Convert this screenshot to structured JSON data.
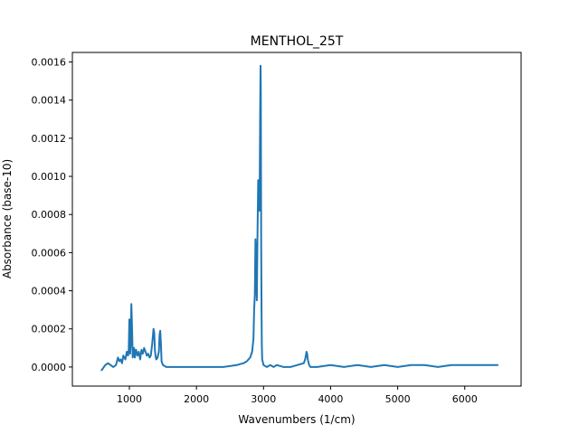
{
  "chart_data": {
    "type": "line",
    "title": "MENTHOL_25T",
    "xlabel": "Wavenumbers (1/cm)",
    "ylabel": "Absorbance (base-10)",
    "xlim": [
      150,
      6840
    ],
    "ylim": [
      -0.0001,
      0.00165
    ],
    "x_ticks": [
      1000,
      2000,
      3000,
      4000,
      5000,
      6000
    ],
    "y_ticks": [
      0.0,
      0.0002,
      0.0004,
      0.0006,
      0.0008,
      0.001,
      0.0012,
      0.0014,
      0.0016
    ],
    "x_tick_labels": [
      "1000",
      "2000",
      "3000",
      "4000",
      "5000",
      "6000"
    ],
    "y_tick_labels": [
      "0.0000",
      "0.0002",
      "0.0004",
      "0.0006",
      "0.0008",
      "0.0010",
      "0.0012",
      "0.0014",
      "0.0016"
    ],
    "grid": false,
    "series": [
      {
        "color": "#1f77b4",
        "x": [
          580,
          600,
          640,
          680,
          720,
          760,
          800,
          830,
          850,
          870,
          890,
          910,
          940,
          960,
          980,
          990,
          1000,
          1010,
          1020,
          1030,
          1040,
          1050,
          1060,
          1070,
          1080,
          1090,
          1100,
          1120,
          1140,
          1160,
          1180,
          1200,
          1220,
          1240,
          1260,
          1280,
          1300,
          1320,
          1340,
          1360,
          1370,
          1380,
          1390,
          1400,
          1420,
          1440,
          1450,
          1460,
          1470,
          1480,
          1500,
          1550,
          1600,
          1700,
          1800,
          2000,
          2200,
          2400,
          2600,
          2700,
          2750,
          2800,
          2830,
          2850,
          2860,
          2870,
          2880,
          2890,
          2900,
          2910,
          2920,
          2930,
          2940,
          2950,
          2955,
          2960,
          2965,
          2970,
          2975,
          2980,
          3000,
          3050,
          3100,
          3150,
          3200,
          3300,
          3400,
          3500,
          3600,
          3620,
          3640,
          3650,
          3660,
          3680,
          3700,
          3800,
          4000,
          4200,
          4400,
          4600,
          4800,
          5000,
          5200,
          5400,
          5600,
          5800,
          6000,
          6200,
          6400,
          6500
        ],
        "values": [
          -2e-05,
          -1e-05,
          1e-05,
          2e-05,
          1e-05,
          0.0,
          1e-05,
          5e-05,
          3e-05,
          4e-05,
          2e-05,
          6e-05,
          4e-05,
          8e-05,
          6e-05,
          9e-05,
          0.00025,
          7e-05,
          0.00012,
          0.00033,
          0.0002,
          5e-05,
          8e-05,
          0.0001,
          5e-05,
          7e-05,
          9e-05,
          6e-05,
          8e-05,
          4e-05,
          9e-05,
          7e-05,
          0.0001,
          8e-05,
          6e-05,
          7e-05,
          5e-05,
          6e-05,
          0.00012,
          0.0002,
          0.00018,
          9e-05,
          6e-05,
          4e-05,
          5e-05,
          8e-05,
          0.00017,
          0.00019,
          0.00012,
          3e-05,
          1e-05,
          0.0,
          0.0,
          0.0,
          0.0,
          0.0,
          0.0,
          0.0,
          1e-05,
          2e-05,
          3e-05,
          5e-05,
          8e-05,
          0.00015,
          0.0003,
          0.00038,
          0.00067,
          0.00052,
          0.00035,
          0.00068,
          0.00098,
          0.00092,
          0.00082,
          0.00135,
          0.00158,
          0.00145,
          0.00064,
          0.0003,
          0.00012,
          4e-05,
          1e-05,
          0.0,
          1e-05,
          0.0,
          1e-05,
          0.0,
          0.0,
          1e-05,
          2e-05,
          4e-05,
          8e-05,
          7e-05,
          4e-05,
          1e-05,
          0.0,
          0.0,
          1e-05,
          0.0,
          1e-05,
          0.0,
          1e-05,
          0.0,
          1e-05,
          1e-05,
          0.0,
          1e-05,
          1e-05,
          1e-05,
          1e-05,
          1e-05
        ]
      }
    ]
  }
}
